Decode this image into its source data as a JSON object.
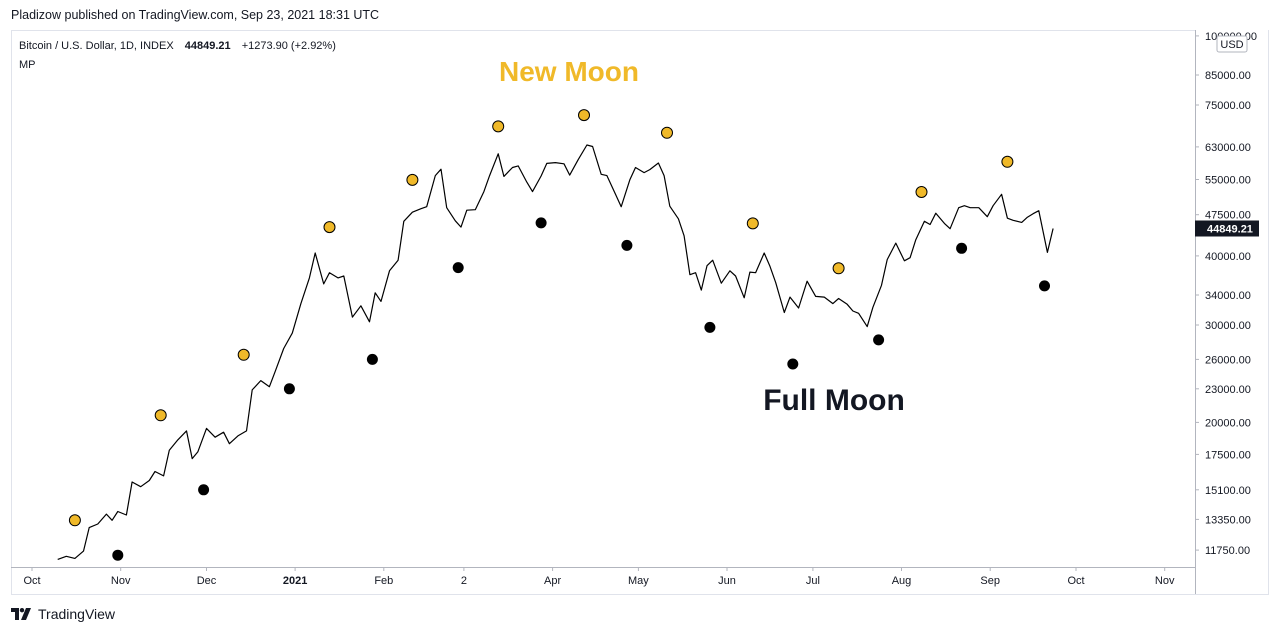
{
  "header": {
    "published": "Pladizow published on TradingView.com, Sep 23, 2021 18:31 UTC"
  },
  "legend": {
    "symbol": "Bitcoin / U.S. Dollar, 1D, INDEX",
    "price": "44849.21",
    "change": "+1273.90 (+2.92%)",
    "indicator": "MP"
  },
  "brand": {
    "name": "TradingView",
    "icon": "tradingview-logo-icon"
  },
  "colors": {
    "new_moon": "#f0b929",
    "full_moon": "#000000",
    "line": "#000000",
    "price_badge": "#131722"
  },
  "chart_data": {
    "type": "line",
    "title": "",
    "xlabel": "",
    "ylabel": "",
    "currency": "USD",
    "scale": "log",
    "ylim": [
      10950,
      102500
    ],
    "x_ticks": [
      {
        "label": "Oct",
        "date": "2020-10-01"
      },
      {
        "label": "Nov",
        "date": "2020-11-01"
      },
      {
        "label": "Dec",
        "date": "2020-12-01"
      },
      {
        "label": "2021",
        "date": "2021-01-01",
        "bold": true
      },
      {
        "label": "Feb",
        "date": "2021-02-01"
      },
      {
        "label": "2",
        "date": "2021-03-01"
      },
      {
        "label": "Apr",
        "date": "2021-04-01"
      },
      {
        "label": "May",
        "date": "2021-05-01"
      },
      {
        "label": "Jun",
        "date": "2021-06-01"
      },
      {
        "label": "Jul",
        "date": "2021-07-01"
      },
      {
        "label": "Aug",
        "date": "2021-08-01"
      },
      {
        "label": "Sep",
        "date": "2021-09-01"
      },
      {
        "label": "Oct",
        "date": "2021-10-01"
      },
      {
        "label": "Nov",
        "date": "2021-11-01"
      }
    ],
    "y_ticks": [
      "100000.00",
      "85000.00",
      "75000.00",
      "63000.00",
      "55000.00",
      "47500.00",
      "40000.00",
      "34000.00",
      "30000.00",
      "26000.00",
      "23000.00",
      "20000.00",
      "17500.00",
      "15100.00",
      "13350.00",
      "11750.00"
    ],
    "last_price_label": "44849.21",
    "annotations": {
      "new_moon": "New Moon",
      "full_moon": "Full Moon"
    },
    "series": [
      {
        "name": "Bitcoin / U.S. Dollar",
        "points": [
          [
            "2020-10-10",
            11300
          ],
          [
            "2020-10-13",
            11450
          ],
          [
            "2020-10-16",
            11350
          ],
          [
            "2020-10-19",
            11700
          ],
          [
            "2020-10-21",
            12900
          ],
          [
            "2020-10-24",
            13100
          ],
          [
            "2020-10-27",
            13650
          ],
          [
            "2020-10-29",
            13300
          ],
          [
            "2020-10-31",
            13800
          ],
          [
            "2020-11-03",
            13600
          ],
          [
            "2020-11-05",
            15600
          ],
          [
            "2020-11-08",
            15300
          ],
          [
            "2020-11-11",
            15700
          ],
          [
            "2020-11-13",
            16300
          ],
          [
            "2020-11-16",
            16000
          ],
          [
            "2020-11-18",
            17800
          ],
          [
            "2020-11-21",
            18600
          ],
          [
            "2020-11-24",
            19300
          ],
          [
            "2020-11-26",
            17200
          ],
          [
            "2020-11-28",
            17700
          ],
          [
            "2020-12-01",
            19500
          ],
          [
            "2020-12-04",
            18800
          ],
          [
            "2020-12-07",
            19200
          ],
          [
            "2020-12-09",
            18300
          ],
          [
            "2020-12-12",
            18900
          ],
          [
            "2020-12-15",
            19300
          ],
          [
            "2020-12-17",
            22900
          ],
          [
            "2020-12-20",
            23800
          ],
          [
            "2020-12-23",
            23200
          ],
          [
            "2020-12-25",
            24700
          ],
          [
            "2020-12-28",
            27200
          ],
          [
            "2020-12-31",
            29000
          ],
          [
            "2021-01-03",
            32800
          ],
          [
            "2021-01-06",
            36500
          ],
          [
            "2021-01-08",
            40500
          ],
          [
            "2021-01-11",
            35600
          ],
          [
            "2021-01-13",
            37300
          ],
          [
            "2021-01-16",
            36500
          ],
          [
            "2021-01-18",
            36800
          ],
          [
            "2021-01-21",
            31000
          ],
          [
            "2021-01-24",
            32500
          ],
          [
            "2021-01-27",
            30400
          ],
          [
            "2021-01-29",
            34300
          ],
          [
            "2021-01-31",
            33100
          ],
          [
            "2021-02-03",
            37600
          ],
          [
            "2021-02-06",
            39300
          ],
          [
            "2021-02-08",
            46200
          ],
          [
            "2021-02-11",
            48000
          ],
          [
            "2021-02-14",
            48700
          ],
          [
            "2021-02-16",
            49100
          ],
          [
            "2021-02-19",
            55900
          ],
          [
            "2021-02-21",
            57400
          ],
          [
            "2021-02-23",
            48900
          ],
          [
            "2021-02-26",
            46300
          ],
          [
            "2021-02-28",
            45100
          ],
          [
            "2021-03-02",
            48400
          ],
          [
            "2021-03-05",
            48500
          ],
          [
            "2021-03-08",
            52300
          ],
          [
            "2021-03-10",
            55900
          ],
          [
            "2021-03-13",
            61200
          ],
          [
            "2021-03-15",
            55700
          ],
          [
            "2021-03-18",
            57800
          ],
          [
            "2021-03-20",
            58200
          ],
          [
            "2021-03-23",
            54400
          ],
          [
            "2021-03-25",
            52300
          ],
          [
            "2021-03-28",
            55800
          ],
          [
            "2021-03-30",
            58800
          ],
          [
            "2021-04-02",
            59000
          ],
          [
            "2021-04-05",
            58700
          ],
          [
            "2021-04-07",
            56000
          ],
          [
            "2021-04-10",
            59800
          ],
          [
            "2021-04-13",
            63500
          ],
          [
            "2021-04-15",
            63100
          ],
          [
            "2021-04-18",
            56200
          ],
          [
            "2021-04-20",
            55900
          ],
          [
            "2021-04-23",
            51700
          ],
          [
            "2021-04-25",
            49100
          ],
          [
            "2021-04-28",
            54900
          ],
          [
            "2021-04-30",
            57800
          ],
          [
            "2021-05-03",
            56600
          ],
          [
            "2021-05-05",
            57300
          ],
          [
            "2021-05-08",
            58900
          ],
          [
            "2021-05-10",
            55900
          ],
          [
            "2021-05-12",
            49200
          ],
          [
            "2021-05-15",
            46700
          ],
          [
            "2021-05-17",
            43500
          ],
          [
            "2021-05-19",
            37000
          ],
          [
            "2021-05-21",
            37300
          ],
          [
            "2021-05-23",
            34700
          ],
          [
            "2021-05-25",
            38400
          ],
          [
            "2021-05-27",
            39300
          ],
          [
            "2021-05-30",
            35700
          ],
          [
            "2021-06-02",
            37600
          ],
          [
            "2021-06-04",
            36800
          ],
          [
            "2021-06-07",
            33600
          ],
          [
            "2021-06-09",
            37400
          ],
          [
            "2021-06-11",
            37300
          ],
          [
            "2021-06-14",
            40500
          ],
          [
            "2021-06-16",
            38300
          ],
          [
            "2021-06-18",
            35800
          ],
          [
            "2021-06-21",
            31600
          ],
          [
            "2021-06-23",
            33700
          ],
          [
            "2021-06-26",
            32200
          ],
          [
            "2021-06-29",
            36000
          ],
          [
            "2021-07-02",
            33800
          ],
          [
            "2021-07-05",
            33700
          ],
          [
            "2021-07-08",
            32800
          ],
          [
            "2021-07-10",
            33500
          ],
          [
            "2021-07-13",
            32700
          ],
          [
            "2021-07-15",
            31800
          ],
          [
            "2021-07-17",
            31500
          ],
          [
            "2021-07-20",
            29800
          ],
          [
            "2021-07-22",
            32300
          ],
          [
            "2021-07-25",
            35400
          ],
          [
            "2021-07-27",
            39400
          ],
          [
            "2021-07-30",
            42200
          ],
          [
            "2021-08-02",
            39200
          ],
          [
            "2021-08-04",
            39700
          ],
          [
            "2021-08-06",
            42800
          ],
          [
            "2021-08-09",
            46200
          ],
          [
            "2021-08-11",
            45600
          ],
          [
            "2021-08-13",
            47800
          ],
          [
            "2021-08-16",
            45800
          ],
          [
            "2021-08-18",
            44800
          ],
          [
            "2021-08-21",
            48900
          ],
          [
            "2021-08-23",
            49300
          ],
          [
            "2021-08-25",
            48900
          ],
          [
            "2021-08-28",
            48900
          ],
          [
            "2021-08-31",
            47100
          ],
          [
            "2021-09-02",
            49300
          ],
          [
            "2021-09-05",
            51700
          ],
          [
            "2021-09-07",
            46800
          ],
          [
            "2021-09-09",
            46400
          ],
          [
            "2021-09-12",
            46000
          ],
          [
            "2021-09-14",
            47000
          ],
          [
            "2021-09-16",
            47700
          ],
          [
            "2021-09-18",
            48300
          ],
          [
            "2021-09-21",
            40600
          ],
          [
            "2021-09-23",
            44849.21
          ]
        ]
      }
    ],
    "new_moons": [
      [
        "2020-10-16",
        13300
      ],
      [
        "2020-11-15",
        20600
      ],
      [
        "2020-12-14",
        26500
      ],
      [
        "2021-01-13",
        45100
      ],
      [
        "2021-02-11",
        54900
      ],
      [
        "2021-03-13",
        68600
      ],
      [
        "2021-04-12",
        71900
      ],
      [
        "2021-05-11",
        66800
      ],
      [
        "2021-06-10",
        45800
      ],
      [
        "2021-07-10",
        38000
      ],
      [
        "2021-08-08",
        52200
      ],
      [
        "2021-09-07",
        59200
      ]
    ],
    "full_moons": [
      [
        "2020-10-31",
        11500
      ],
      [
        "2020-11-30",
        15100
      ],
      [
        "2020-12-30",
        23000
      ],
      [
        "2021-01-28",
        26000
      ],
      [
        "2021-02-27",
        38100
      ],
      [
        "2021-03-28",
        45900
      ],
      [
        "2021-04-27",
        41800
      ],
      [
        "2021-05-26",
        29700
      ],
      [
        "2021-06-24",
        25500
      ],
      [
        "2021-07-24",
        28200
      ],
      [
        "2021-08-22",
        41300
      ],
      [
        "2021-09-20",
        35300
      ]
    ]
  }
}
